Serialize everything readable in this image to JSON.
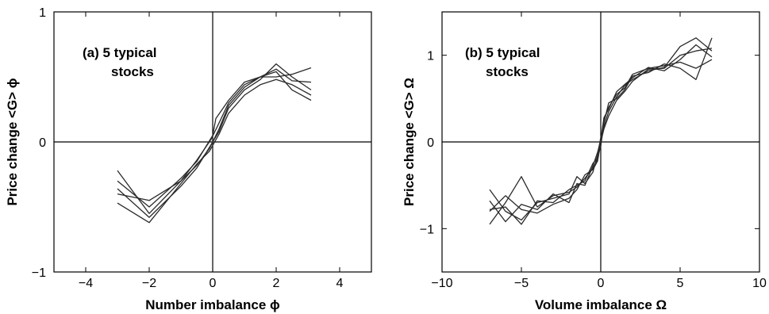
{
  "chart_data": [
    {
      "type": "line",
      "annotation": [
        "(a) 5 typical",
        "stocks"
      ],
      "xlabel": "Number imbalance ϕ",
      "ylabel": "Price change <G> ϕ",
      "xlim": [
        -5,
        5
      ],
      "ylim": [
        -1,
        1
      ],
      "xticks": [
        -4,
        -2,
        0,
        2,
        4
      ],
      "yticks": [
        -1,
        0,
        1
      ],
      "ytick_labels": [
        "−1",
        "0",
        "1"
      ],
      "xtick_labels": [
        "−4",
        "−2",
        "0",
        "2",
        "4"
      ],
      "zero_lines": true,
      "series": [
        {
          "x": [
            -3.0,
            -2.0,
            -1.0,
            -0.5,
            -0.1,
            0.2,
            0.5,
            1.0,
            1.5,
            2.0,
            2.5,
            3.1
          ],
          "y": [
            -0.22,
            -0.55,
            -0.3,
            -0.18,
            -0.05,
            0.1,
            0.28,
            0.42,
            0.5,
            0.54,
            0.4,
            0.32
          ]
        },
        {
          "x": [
            -3.0,
            -2.0,
            -1.0,
            -0.5,
            0.0,
            0.1,
            0.5,
            1.0,
            1.5,
            2.0,
            2.5,
            3.1
          ],
          "y": [
            -0.3,
            -0.5,
            -0.28,
            -0.15,
            0.05,
            0.18,
            0.32,
            0.46,
            0.5,
            0.5,
            0.52,
            0.57
          ]
        },
        {
          "x": [
            -3.0,
            -2.0,
            -1.0,
            -0.5,
            -0.05,
            0.2,
            0.5,
            1.0,
            1.5,
            2.0,
            2.5,
            3.1
          ],
          "y": [
            -0.36,
            -0.58,
            -0.34,
            -0.2,
            -0.02,
            0.08,
            0.26,
            0.4,
            0.48,
            0.6,
            0.5,
            0.4
          ]
        },
        {
          "x": [
            -3.0,
            -2.0,
            -1.0,
            -0.5,
            -0.1,
            0.2,
            0.5,
            1.0,
            1.5,
            2.0,
            2.5,
            3.1
          ],
          "y": [
            -0.47,
            -0.62,
            -0.32,
            -0.17,
            -0.07,
            0.06,
            0.22,
            0.36,
            0.44,
            0.48,
            0.44,
            0.36
          ]
        },
        {
          "x": [
            -3.0,
            -2.0,
            -1.0,
            -0.5,
            -0.05,
            0.15,
            0.5,
            1.0,
            1.5,
            2.0,
            2.5,
            3.1
          ],
          "y": [
            -0.4,
            -0.45,
            -0.3,
            -0.14,
            0.02,
            0.12,
            0.3,
            0.44,
            0.5,
            0.56,
            0.47,
            0.46
          ]
        }
      ]
    },
    {
      "type": "line",
      "annotation": [
        "(b) 5 typical",
        "stocks"
      ],
      "xlabel": "Volume imbalance Ω",
      "ylabel": "Price change <G> Ω",
      "xlim": [
        -10,
        10
      ],
      "ylim": [
        -1.5,
        1.5
      ],
      "xticks": [
        -10,
        -5,
        0,
        5,
        10
      ],
      "yticks": [
        -1,
        0,
        1
      ],
      "ytick_labels": [
        "−1",
        "0",
        "1"
      ],
      "xtick_labels": [
        "−10",
        "−5",
        "0",
        "5",
        "10"
      ],
      "zero_lines": true,
      "series": [
        {
          "x": [
            -7,
            -6,
            -5,
            -4,
            -3,
            -2,
            -1.5,
            -1,
            -0.5,
            -0.2,
            0,
            0.2,
            0.5,
            1,
            1.5,
            2,
            3,
            4,
            5,
            6,
            7
          ],
          "y": [
            -0.95,
            -0.7,
            -0.4,
            -0.75,
            -0.62,
            -0.58,
            -0.52,
            -0.42,
            -0.3,
            -0.2,
            0.0,
            0.25,
            0.4,
            0.55,
            0.62,
            0.78,
            0.85,
            0.88,
            0.92,
            0.85,
            0.95
          ]
        },
        {
          "x": [
            -7,
            -6,
            -5,
            -4,
            -3,
            -2,
            -1.5,
            -1,
            -0.5,
            -0.2,
            0,
            0.2,
            0.5,
            1,
            1.5,
            2,
            3,
            4,
            5,
            6,
            7
          ],
          "y": [
            -0.55,
            -0.8,
            -0.9,
            -0.7,
            -0.65,
            -0.6,
            -0.4,
            -0.48,
            -0.35,
            -0.15,
            0.05,
            0.18,
            0.35,
            0.52,
            0.65,
            0.72,
            0.82,
            0.86,
            1.1,
            1.2,
            1.05
          ]
        },
        {
          "x": [
            -7,
            -6,
            -5,
            -4,
            -3,
            -2,
            -1.5,
            -1,
            -0.5,
            -0.2,
            0,
            0.2,
            0.5,
            1,
            1.5,
            2,
            3,
            4,
            5,
            6,
            7
          ],
          "y": [
            -0.78,
            -0.75,
            -0.95,
            -0.68,
            -0.7,
            -0.55,
            -0.5,
            -0.45,
            -0.25,
            -0.18,
            -0.05,
            0.22,
            0.45,
            0.5,
            0.6,
            0.76,
            0.8,
            0.9,
            0.85,
            0.72,
            1.2
          ]
        },
        {
          "x": [
            -7,
            -6,
            -5,
            -4,
            -3,
            -2,
            -1.5,
            -1,
            -0.5,
            -0.2,
            0,
            0.2,
            0.5,
            1,
            1.5,
            2,
            3,
            4,
            5,
            6,
            7
          ],
          "y": [
            -0.8,
            -0.62,
            -0.78,
            -0.82,
            -0.72,
            -0.65,
            -0.55,
            -0.38,
            -0.32,
            -0.22,
            0.0,
            0.15,
            0.3,
            0.48,
            0.58,
            0.7,
            0.84,
            0.85,
            1.0,
            1.05,
            1.08
          ]
        },
        {
          "x": [
            -7,
            -6,
            -5,
            -4,
            -3,
            -2,
            -1.5,
            -1,
            -0.5,
            -0.2,
            0,
            0.2,
            0.5,
            1,
            1.5,
            2,
            3,
            4,
            5,
            6,
            7
          ],
          "y": [
            -0.68,
            -0.92,
            -0.72,
            -0.78,
            -0.6,
            -0.7,
            -0.48,
            -0.5,
            -0.28,
            -0.12,
            0.02,
            0.28,
            0.38,
            0.58,
            0.66,
            0.74,
            0.86,
            0.82,
            0.95,
            1.12,
            0.98
          ]
        }
      ]
    }
  ]
}
